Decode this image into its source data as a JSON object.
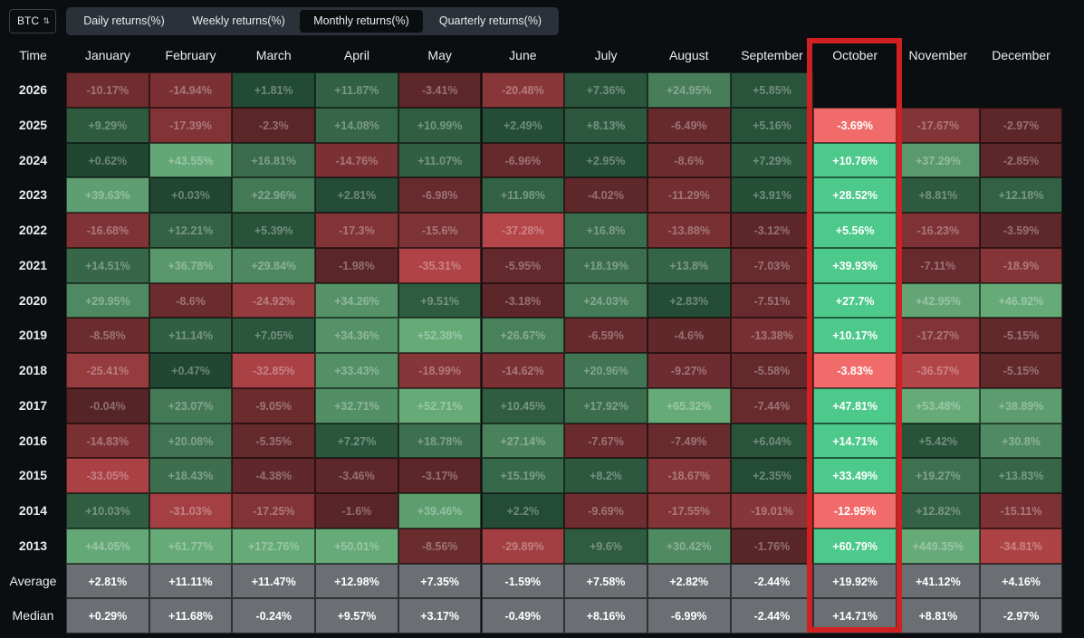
{
  "asset_selector": {
    "value": "BTC",
    "icon": "chevron-updown-icon"
  },
  "tabs": [
    {
      "label": "Daily returns(%)",
      "active": false
    },
    {
      "label": "Weekly returns(%)",
      "active": false
    },
    {
      "label": "Monthly returns(%)",
      "active": true
    },
    {
      "label": "Quarterly returns(%)",
      "active": false
    }
  ],
  "table": {
    "columns": [
      "Time",
      "January",
      "February",
      "March",
      "April",
      "May",
      "June",
      "July",
      "August",
      "September",
      "October",
      "November",
      "December"
    ],
    "rows": [
      {
        "year": "2026",
        "values": [
          "-10.17%",
          "-14.94%",
          "+1.81%",
          "+11.87%",
          "-3.41%",
          "-20.48%",
          "+7.36%",
          "+24.95%",
          "+5.85%",
          "",
          "",
          ""
        ]
      },
      {
        "year": "2025",
        "values": [
          "+9.29%",
          "-17.39%",
          "-2.3%",
          "+14.08%",
          "+10.99%",
          "+2.49%",
          "+8.13%",
          "-6.49%",
          "+5.16%",
          "-3.69%",
          "-17.67%",
          "-2.97%"
        ]
      },
      {
        "year": "2024",
        "values": [
          "+0.62%",
          "+43.55%",
          "+16.81%",
          "-14.76%",
          "+11.07%",
          "-6.96%",
          "+2.95%",
          "-8.6%",
          "+7.29%",
          "+10.76%",
          "+37.29%",
          "-2.85%"
        ]
      },
      {
        "year": "2023",
        "values": [
          "+39.63%",
          "+0.03%",
          "+22.96%",
          "+2.81%",
          "-6.98%",
          "+11.98%",
          "-4.02%",
          "-11.29%",
          "+3.91%",
          "+28.52%",
          "+8.81%",
          "+12.18%"
        ]
      },
      {
        "year": "2022",
        "values": [
          "-16.68%",
          "+12.21%",
          "+5.39%",
          "-17.3%",
          "-15.6%",
          "-37.28%",
          "+16.8%",
          "-13.88%",
          "-3.12%",
          "+5.56%",
          "-16.23%",
          "-3.59%"
        ]
      },
      {
        "year": "2021",
        "values": [
          "+14.51%",
          "+36.78%",
          "+29.84%",
          "-1.98%",
          "-35.31%",
          "-5.95%",
          "+18.19%",
          "+13.8%",
          "-7.03%",
          "+39.93%",
          "-7.11%",
          "-18.9%"
        ]
      },
      {
        "year": "2020",
        "values": [
          "+29.95%",
          "-8.6%",
          "-24.92%",
          "+34.26%",
          "+9.51%",
          "-3.18%",
          "+24.03%",
          "+2.83%",
          "-7.51%",
          "+27.7%",
          "+42.95%",
          "+46.92%"
        ]
      },
      {
        "year": "2019",
        "values": [
          "-8.58%",
          "+11.14%",
          "+7.05%",
          "+34.36%",
          "+52.38%",
          "+26.67%",
          "-6.59%",
          "-4.6%",
          "-13.38%",
          "+10.17%",
          "-17.27%",
          "-5.15%"
        ]
      },
      {
        "year": "2018",
        "values": [
          "-25.41%",
          "+0.47%",
          "-32.85%",
          "+33.43%",
          "-18.99%",
          "-14.62%",
          "+20.96%",
          "-9.27%",
          "-5.58%",
          "-3.83%",
          "-36.57%",
          "-5.15%"
        ]
      },
      {
        "year": "2017",
        "values": [
          "-0.04%",
          "+23.07%",
          "-9.05%",
          "+32.71%",
          "+52.71%",
          "+10.45%",
          "+17.92%",
          "+65.32%",
          "-7.44%",
          "+47.81%",
          "+53.48%",
          "+38.89%"
        ]
      },
      {
        "year": "2016",
        "values": [
          "-14.83%",
          "+20.08%",
          "-5.35%",
          "+7.27%",
          "+18.78%",
          "+27.14%",
          "-7.67%",
          "-7.49%",
          "+6.04%",
          "+14.71%",
          "+5.42%",
          "+30.8%"
        ]
      },
      {
        "year": "2015",
        "values": [
          "-33.05%",
          "+18.43%",
          "-4.38%",
          "-3.46%",
          "-3.17%",
          "+15.19%",
          "+8.2%",
          "-18.67%",
          "+2.35%",
          "+33.49%",
          "+19.27%",
          "+13.83%"
        ]
      },
      {
        "year": "2014",
        "values": [
          "+10.03%",
          "-31.03%",
          "-17.25%",
          "-1.6%",
          "+39.46%",
          "+2.2%",
          "-9.69%",
          "-17.55%",
          "-19.01%",
          "-12.95%",
          "+12.82%",
          "-15.11%"
        ]
      },
      {
        "year": "2013",
        "values": [
          "+44.05%",
          "+61.77%",
          "+172.76%",
          "+50.01%",
          "-8.56%",
          "-29.89%",
          "+9.6%",
          "+30.42%",
          "-1.76%",
          "+60.79%",
          "+449.35%",
          "-34.81%"
        ]
      }
    ],
    "summary": [
      {
        "label": "Average",
        "values": [
          "+2.81%",
          "+11.11%",
          "+11.47%",
          "+12.98%",
          "+7.35%",
          "-1.59%",
          "+7.58%",
          "+2.82%",
          "-2.44%",
          "+19.92%",
          "+41.12%",
          "+4.16%"
        ]
      },
      {
        "label": "Median",
        "values": [
          "+0.29%",
          "+11.68%",
          "-0.24%",
          "+9.57%",
          "+3.17%",
          "-0.49%",
          "+8.16%",
          "-6.99%",
          "-2.44%",
          "+14.71%",
          "+8.81%",
          "-2.97%"
        ]
      }
    ],
    "highlighted_column": "October"
  },
  "colors": {
    "background": "#0b0e11",
    "positive": "#4cc98b",
    "negative": "#f16b6b",
    "highlight_border": "#cf2121",
    "summary_bg": "#6b6e73"
  }
}
